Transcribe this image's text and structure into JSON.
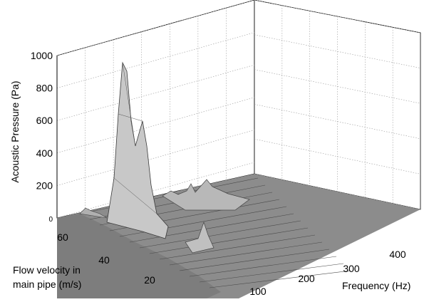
{
  "chart_data": {
    "type": "surface",
    "title": "",
    "zlabel": "Acoustic Pressure (Pa)",
    "ylabel_lines": [
      "Flow velocity in",
      "main pipe (m/s)"
    ],
    "xlabel": "Frequency (Hz)",
    "z_ticks": [
      0,
      200,
      400,
      600,
      800,
      1000
    ],
    "y_ticks": [
      20,
      40,
      60
    ],
    "x_ticks": [
      100,
      200,
      300,
      400
    ],
    "zlim": [
      0,
      1000
    ],
    "ylim": [
      10,
      70
    ],
    "xlim": [
      0,
      500
    ],
    "grid": true,
    "surface_color": "#8c8c8c",
    "wire_color": "#4a4a4a",
    "peaks": [
      {
        "frequency": 18,
        "velocity": 48,
        "pressure": 940
      },
      {
        "frequency": 20,
        "velocity": 40,
        "pressure": 590
      },
      {
        "frequency": 30,
        "velocity": 22,
        "pressure": 200
      },
      {
        "frequency": 60,
        "velocity": 52,
        "pressure": 160
      },
      {
        "frequency": 90,
        "velocity": 52,
        "pressure": 150
      }
    ]
  }
}
